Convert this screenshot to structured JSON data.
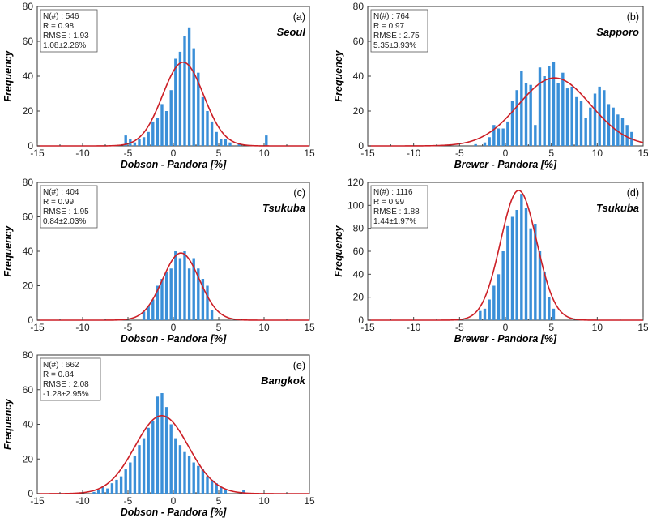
{
  "chart_data": [
    {
      "type": "bar",
      "panel": "(a)",
      "site": "Seoul",
      "xlabel": "Dobson - Pandora [%]",
      "ylabel": "Frequency",
      "xlim": [
        -15,
        15
      ],
      "ylim": [
        0,
        80
      ],
      "xticks": [
        "-15",
        "-10",
        "-5",
        "0",
        "5",
        "10",
        "15"
      ],
      "yticks": [
        "0",
        "20",
        "40",
        "60",
        "80"
      ],
      "stats": [
        "N(#) : 546",
        "R = 0.98",
        "RMSE : 1.93",
        "1.08±2.26%"
      ],
      "fit": {
        "mean": 1.08,
        "sd": 2.26,
        "peak": 48
      },
      "x": [
        -5.25,
        -4.75,
        -4.25,
        -3.75,
        -3.25,
        -2.75,
        -2.25,
        -1.75,
        -1.25,
        -0.75,
        -0.25,
        0.25,
        0.75,
        1.25,
        1.75,
        2.25,
        2.75,
        3.25,
        3.75,
        4.25,
        4.75,
        5.25,
        5.75,
        6.25,
        7.25,
        10.25
      ],
      "values": [
        6,
        4,
        2,
        4,
        5,
        8,
        14,
        16,
        24,
        20,
        32,
        50,
        54,
        63,
        68,
        56,
        42,
        28,
        20,
        14,
        8,
        4,
        4,
        2,
        1,
        6
      ]
    },
    {
      "type": "bar",
      "panel": "(b)",
      "site": "Sapporo",
      "xlabel": "Brewer - Pandora [%]",
      "ylabel": "Frequency",
      "xlim": [
        -15,
        15
      ],
      "ylim": [
        0,
        80
      ],
      "xticks": [
        "-15",
        "-10",
        "-5",
        "0",
        "5",
        "10",
        "15"
      ],
      "yticks": [
        "0",
        "20",
        "40",
        "60",
        "80"
      ],
      "stats": [
        "N(#) : 764",
        "R = 0.97",
        "RMSE : 2.75",
        "5.35±3.93%"
      ],
      "fit": {
        "mean": 5.35,
        "sd": 3.93,
        "peak": 39
      },
      "x": [
        -3.25,
        -2.25,
        -1.75,
        -1.25,
        -0.75,
        -0.25,
        0.25,
        0.75,
        1.25,
        1.75,
        2.25,
        2.75,
        3.25,
        3.75,
        4.25,
        4.75,
        5.25,
        5.75,
        6.25,
        6.75,
        7.25,
        7.75,
        8.25,
        8.75,
        9.25,
        9.75,
        10.25,
        10.75,
        11.25,
        11.75,
        12.25,
        12.75,
        13.25,
        13.75
      ],
      "values": [
        1,
        2,
        5,
        12,
        10,
        10,
        14,
        26,
        32,
        43,
        36,
        35,
        12,
        45,
        40,
        46,
        48,
        36,
        42,
        33,
        34,
        28,
        26,
        16,
        22,
        30,
        34,
        32,
        24,
        22,
        18,
        16,
        12,
        8
      ]
    },
    {
      "type": "bar",
      "panel": "(c)",
      "site": "Tsukuba",
      "xlabel": "Dobson - Pandora [%]",
      "ylabel": "Frequency",
      "xlim": [
        -15,
        15
      ],
      "ylim": [
        0,
        80
      ],
      "xticks": [
        "-15",
        "-10",
        "-5",
        "0",
        "5",
        "10",
        "15"
      ],
      "yticks": [
        "0",
        "20",
        "40",
        "60",
        "80"
      ],
      "stats": [
        "N(#) : 404",
        "R = 0.99",
        "RMSE : 1.95",
        "0.84±2.03%"
      ],
      "fit": {
        "mean": 0.84,
        "sd": 2.03,
        "peak": 39
      },
      "x": [
        -3.25,
        -2.75,
        -2.25,
        -1.75,
        -1.25,
        -0.75,
        -0.25,
        0.25,
        0.75,
        1.25,
        1.75,
        2.25,
        2.75,
        3.25,
        3.75,
        4.25
      ],
      "values": [
        5,
        8,
        12,
        20,
        24,
        28,
        30,
        40,
        36,
        40,
        30,
        36,
        30,
        24,
        20,
        6
      ]
    },
    {
      "type": "bar",
      "panel": "(d)",
      "site": "Tsukuba",
      "xlabel": "Brewer - Pandora [%]",
      "ylabel": "Frequency",
      "xlim": [
        -15,
        15
      ],
      "ylim": [
        0,
        120
      ],
      "xticks": [
        "-15",
        "-10",
        "-5",
        "0",
        "5",
        "10",
        "15"
      ],
      "yticks": [
        "0",
        "20",
        "40",
        "60",
        "80",
        "100",
        "120"
      ],
      "stats": [
        "N(#) : 1116",
        "R = 0.99",
        "RMSE : 1.88",
        "1.44±1.97%"
      ],
      "fit": {
        "mean": 1.44,
        "sd": 1.97,
        "peak": 113
      },
      "x": [
        -2.75,
        -2.25,
        -1.75,
        -1.25,
        -0.75,
        -0.25,
        0.25,
        0.75,
        1.25,
        1.75,
        2.25,
        2.75,
        3.25,
        3.75,
        4.25,
        4.75,
        5.25
      ],
      "values": [
        8,
        10,
        18,
        30,
        40,
        60,
        82,
        90,
        96,
        110,
        98,
        80,
        84,
        60,
        42,
        20,
        10
      ]
    },
    {
      "type": "bar",
      "panel": "(e)",
      "site": "Bangkok",
      "xlabel": "Dobson - Pandora [%]",
      "ylabel": "Frequency",
      "xlim": [
        -15,
        15
      ],
      "ylim": [
        0,
        80
      ],
      "xticks": [
        "-15",
        "-10",
        "-5",
        "0",
        "5",
        "10",
        "15"
      ],
      "yticks": [
        "0",
        "20",
        "40",
        "60",
        "80"
      ],
      "stats": [
        "N(#) : 662",
        "R = 0.84",
        "RMSE : 2.08",
        "-1.28±2.95%"
      ],
      "fit": {
        "mean": -1.28,
        "sd": 2.95,
        "peak": 45
      },
      "x": [
        -8.75,
        -8.25,
        -7.75,
        -7.25,
        -6.75,
        -6.25,
        -5.75,
        -5.25,
        -4.75,
        -4.25,
        -3.75,
        -3.25,
        -2.75,
        -2.25,
        -1.75,
        -1.25,
        -0.75,
        -0.25,
        0.25,
        0.75,
        1.25,
        1.75,
        2.25,
        2.75,
        3.25,
        3.75,
        4.25,
        4.75,
        5.25,
        5.75,
        7.75
      ],
      "values": [
        1,
        2,
        4,
        3,
        6,
        8,
        10,
        14,
        18,
        22,
        28,
        32,
        38,
        42,
        56,
        58,
        50,
        40,
        32,
        28,
        24,
        22,
        18,
        16,
        14,
        10,
        8,
        6,
        4,
        2,
        2
      ]
    }
  ],
  "colors": {
    "bar": "#3a8fd8",
    "fit": "#cc1f26",
    "axis": "#444444",
    "frame": "#333333"
  }
}
